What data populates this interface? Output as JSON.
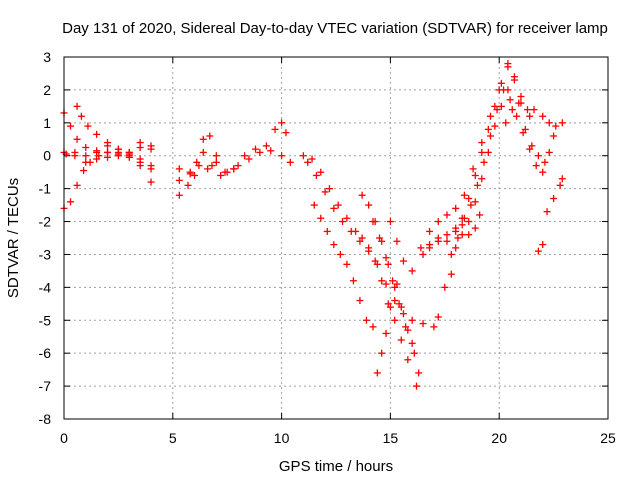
{
  "chart_data": {
    "type": "scatter",
    "title": "Day 131 of 2020, Sidereal Day-to-day VTEC variation (SDTVAR) for receiver lamp",
    "xlabel": "GPS time / hours",
    "ylabel": "SDTVAR / TECUs",
    "xlim": [
      0,
      25
    ],
    "ylim": [
      -8,
      3
    ],
    "xticks": [
      "0",
      "5",
      "10",
      "15",
      "20",
      "25"
    ],
    "yticks": [
      "3",
      "2",
      "1",
      "0",
      "-1",
      "-2",
      "-3",
      "-4",
      "-5",
      "-6",
      "-7",
      "-8"
    ],
    "grid": true,
    "marker": "+",
    "color": "#ff0000",
    "tracks": [
      [
        [
          0.0,
          1.3
        ],
        [
          0.3,
          0.9
        ],
        [
          0.6,
          0.5
        ],
        [
          1.0,
          0.25
        ],
        [
          1.5,
          0.1
        ],
        [
          2.0,
          -0.05
        ],
        [
          2.5,
          0.0
        ],
        [
          3.0,
          0.1
        ],
        [
          3.5,
          0.25
        ],
        [
          4.0,
          0.2
        ]
      ],
      [
        [
          0.0,
          0.1
        ],
        [
          0.5,
          0.0
        ],
        [
          1.0,
          -0.2
        ],
        [
          1.5,
          -0.1
        ],
        [
          2.0,
          0.1
        ],
        [
          2.5,
          0.2
        ],
        [
          3.0,
          0.0
        ],
        [
          3.5,
          -0.3
        ],
        [
          4.0,
          -0.8
        ]
      ],
      [
        [
          0.0,
          -1.6
        ],
        [
          0.3,
          -1.4
        ],
        [
          0.6,
          -0.9
        ],
        [
          0.9,
          -0.45
        ],
        [
          1.2,
          -0.2
        ],
        [
          1.6,
          0.0
        ],
        [
          2.0,
          0.1
        ],
        [
          2.5,
          0.1
        ],
        [
          3.0,
          -0.05
        ],
        [
          3.5,
          -0.2
        ],
        [
          4.0,
          -0.4
        ]
      ],
      [
        [
          0.6,
          1.5
        ],
        [
          0.8,
          1.2
        ],
        [
          1.1,
          0.9
        ],
        [
          1.5,
          0.65
        ],
        [
          2.0,
          0.4
        ],
        [
          2.5,
          0.2
        ],
        [
          3.0,
          0.05
        ],
        [
          3.5,
          -0.1
        ],
        [
          4.0,
          -0.3
        ]
      ],
      [
        [
          0.1,
          0.05
        ],
        [
          0.5,
          0.1
        ],
        [
          1.0,
          0.0
        ],
        [
          1.5,
          0.15
        ],
        [
          2.0,
          0.3
        ],
        [
          2.5,
          0.05
        ],
        [
          3.0,
          0.1
        ],
        [
          3.5,
          0.4
        ],
        [
          4.0,
          0.3
        ]
      ],
      [
        [
          5.3,
          -0.4
        ],
        [
          5.8,
          -0.5
        ],
        [
          6.1,
          -0.2
        ],
        [
          6.4,
          0.5
        ],
        [
          6.7,
          0.6
        ],
        [
          7.0,
          0.0
        ],
        [
          7.4,
          -0.5
        ],
        [
          7.8,
          -0.4
        ]
      ],
      [
        [
          5.3,
          -0.75
        ],
        [
          5.8,
          -0.55
        ],
        [
          6.2,
          -0.3
        ],
        [
          6.6,
          -0.4
        ],
        [
          7.0,
          -0.2
        ],
        [
          7.5,
          -0.5
        ],
        [
          8.0,
          -0.3
        ],
        [
          8.5,
          -0.1
        ],
        [
          9.0,
          0.1
        ],
        [
          9.5,
          0.15
        ],
        [
          10.0,
          0.0
        ],
        [
          10.4,
          -0.2
        ]
      ],
      [
        [
          5.3,
          -1.2
        ],
        [
          5.7,
          -0.9
        ],
        [
          6.0,
          -0.6
        ],
        [
          6.4,
          0.1
        ],
        [
          6.8,
          -0.3
        ],
        [
          7.2,
          -0.6
        ],
        [
          7.8,
          -0.4
        ],
        [
          8.3,
          0.0
        ],
        [
          8.8,
          0.2
        ],
        [
          9.3,
          0.3
        ],
        [
          9.7,
          0.8
        ],
        [
          10.0,
          1.0
        ],
        [
          10.2,
          0.7
        ]
      ],
      [
        [
          11.0,
          0.0
        ],
        [
          11.4,
          -0.1
        ],
        [
          11.8,
          -0.5
        ],
        [
          12.2,
          -1.0
        ],
        [
          12.6,
          -1.5
        ],
        [
          13.0,
          -1.9
        ],
        [
          13.4,
          -2.3
        ],
        [
          13.7,
          -2.5
        ],
        [
          14.0,
          -2.8
        ],
        [
          14.3,
          -3.2
        ],
        [
          14.6,
          -3.8
        ],
        [
          14.9,
          -4.5
        ],
        [
          15.2,
          -5.0
        ],
        [
          15.5,
          -5.6
        ],
        [
          15.8,
          -6.2
        ],
        [
          16.2,
          -7.0
        ]
      ],
      [
        [
          11.2,
          -0.2
        ],
        [
          11.6,
          -0.6
        ],
        [
          12.0,
          -1.1
        ],
        [
          12.4,
          -1.6
        ],
        [
          12.8,
          -2.0
        ],
        [
          13.2,
          -2.3
        ],
        [
          13.6,
          -2.6
        ],
        [
          14.0,
          -2.9
        ],
        [
          14.4,
          -3.3
        ],
        [
          14.8,
          -3.9
        ],
        [
          15.2,
          -4.4
        ],
        [
          15.6,
          -4.8
        ],
        [
          16.0,
          -5.0
        ],
        [
          16.5,
          -5.1
        ],
        [
          17.0,
          -5.2
        ]
      ],
      [
        [
          11.5,
          -1.5
        ],
        [
          11.8,
          -1.9
        ],
        [
          12.1,
          -2.3
        ],
        [
          12.4,
          -2.7
        ],
        [
          12.7,
          -3.0
        ],
        [
          13.0,
          -3.3
        ],
        [
          13.3,
          -3.8
        ],
        [
          13.6,
          -4.4
        ],
        [
          13.9,
          -5.0
        ],
        [
          14.2,
          -5.2
        ]
      ],
      [
        [
          13.7,
          -1.2
        ],
        [
          14.0,
          -1.5
        ],
        [
          14.3,
          -2.0
        ],
        [
          14.6,
          -2.6
        ],
        [
          14.9,
          -3.3
        ],
        [
          15.2,
          -4.0
        ],
        [
          15.5,
          -4.6
        ],
        [
          15.8,
          -5.3
        ],
        [
          16.1,
          -6.0
        ],
        [
          16.3,
          -6.6
        ]
      ],
      [
        [
          15.0,
          -2.0
        ],
        [
          15.3,
          -2.6
        ],
        [
          15.6,
          -3.2
        ],
        [
          15.3,
          -3.9
        ],
        [
          15.0,
          -4.6
        ],
        [
          14.8,
          -5.4
        ],
        [
          14.6,
          -6.0
        ],
        [
          14.4,
          -6.6
        ]
      ],
      [
        [
          14.2,
          -2.0
        ],
        [
          14.5,
          -2.5
        ],
        [
          14.8,
          -3.1
        ],
        [
          15.1,
          -3.8
        ],
        [
          15.4,
          -4.5
        ],
        [
          15.7,
          -5.2
        ],
        [
          16.0,
          -5.7
        ]
      ],
      [
        [
          16.5,
          -3.0
        ],
        [
          16.8,
          -2.8
        ],
        [
          17.2,
          -2.6
        ],
        [
          17.6,
          -2.4
        ],
        [
          18.0,
          -2.2
        ],
        [
          18.3,
          -1.9
        ],
        [
          18.6,
          -1.3
        ],
        [
          18.9,
          -0.6
        ],
        [
          19.2,
          0.1
        ],
        [
          19.5,
          0.8
        ],
        [
          19.8,
          1.5
        ],
        [
          20.1,
          2.2
        ],
        [
          20.4,
          2.7
        ]
      ],
      [
        [
          16.0,
          -3.5
        ],
        [
          16.4,
          -2.8
        ],
        [
          16.8,
          -2.3
        ],
        [
          17.2,
          -2.0
        ],
        [
          17.6,
          -1.8
        ],
        [
          18.0,
          -1.6
        ],
        [
          18.4,
          -1.2
        ],
        [
          18.8,
          -0.4
        ],
        [
          19.2,
          0.4
        ],
        [
          19.6,
          1.2
        ],
        [
          20.0,
          2.0
        ],
        [
          20.4,
          2.8
        ],
        [
          20.7,
          2.3
        ],
        [
          21.0,
          1.6
        ],
        [
          21.4,
          1.2
        ]
      ],
      [
        [
          17.2,
          -4.9
        ],
        [
          17.5,
          -4.0
        ],
        [
          17.8,
          -3.0
        ],
        [
          18.1,
          -2.5
        ],
        [
          18.4,
          -1.9
        ],
        [
          18.7,
          -1.5
        ],
        [
          19.0,
          -0.9
        ],
        [
          19.3,
          -0.2
        ],
        [
          19.6,
          0.6
        ],
        [
          19.9,
          1.4
        ],
        [
          20.2,
          2.0
        ],
        [
          20.5,
          1.7
        ],
        [
          20.8,
          1.2
        ],
        [
          21.1,
          0.7
        ],
        [
          21.4,
          0.2
        ],
        [
          21.7,
          -0.3
        ],
        [
          22.0,
          -0.5
        ]
      ],
      [
        [
          17.8,
          -3.6
        ],
        [
          18.0,
          -2.8
        ],
        [
          18.3,
          -2.4
        ],
        [
          18.6,
          -2.0
        ],
        [
          18.9,
          -1.4
        ],
        [
          19.2,
          -0.7
        ],
        [
          19.5,
          0.1
        ],
        [
          19.8,
          0.9
        ],
        [
          20.1,
          1.5
        ],
        [
          20.4,
          2.0
        ],
        [
          20.7,
          2.4
        ],
        [
          21.0,
          1.8
        ],
        [
          21.3,
          1.4
        ],
        [
          21.6,
          1.4
        ],
        [
          22.0,
          1.2
        ],
        [
          22.3,
          1.0
        ],
        [
          22.6,
          0.9
        ],
        [
          22.9,
          1.0
        ]
      ],
      [
        [
          20.3,
          1.0
        ],
        [
          20.6,
          1.4
        ],
        [
          20.9,
          1.6
        ],
        [
          21.2,
          0.8
        ],
        [
          21.5,
          0.3
        ],
        [
          21.8,
          0.0
        ],
        [
          22.1,
          -0.2
        ],
        [
          22.3,
          0.1
        ],
        [
          22.5,
          0.6
        ]
      ],
      [
        [
          21.8,
          -2.9
        ],
        [
          22.0,
          -2.7
        ]
      ],
      [
        [
          22.2,
          -1.7
        ],
        [
          22.5,
          -1.3
        ],
        [
          22.8,
          -0.9
        ],
        [
          22.9,
          -0.7
        ]
      ],
      [
        [
          16.8,
          -2.7
        ],
        [
          17.2,
          -2.5
        ],
        [
          17.6,
          -2.6
        ],
        [
          18.0,
          -2.3
        ],
        [
          18.3,
          -2.1
        ],
        [
          18.6,
          -2.4
        ],
        [
          18.9,
          -2.2
        ],
        [
          19.1,
          -1.8
        ]
      ]
    ]
  }
}
